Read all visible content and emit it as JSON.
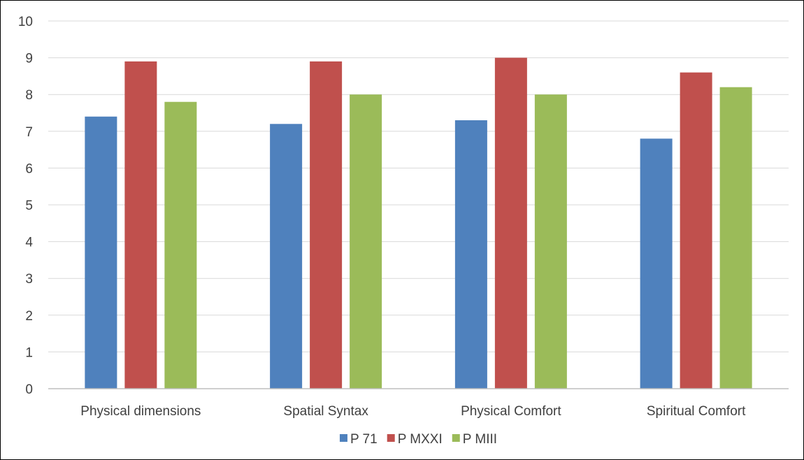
{
  "chart_data": {
    "type": "bar",
    "categories": [
      "Physical dimensions",
      "Spatial Syntax",
      "Physical Comfort",
      "Spiritual Comfort"
    ],
    "series": [
      {
        "name": "P 71",
        "color": "#4f81bd",
        "values": [
          7.4,
          7.2,
          7.3,
          6.8
        ]
      },
      {
        "name": "P MXXI",
        "color": "#c0504d",
        "values": [
          8.9,
          8.9,
          9.0,
          8.6
        ]
      },
      {
        "name": "P MIII",
        "color": "#9bbb59",
        "values": [
          7.8,
          8.0,
          8.0,
          8.2
        ]
      }
    ],
    "title": "",
    "xlabel": "",
    "ylabel": "",
    "ylim": [
      0,
      10
    ],
    "yticks": [
      "0",
      "1",
      "2",
      "3",
      "4",
      "5",
      "6",
      "7",
      "8",
      "9",
      "10"
    ],
    "grid": true,
    "legend_position": "bottom",
    "gridline_color": "#d9d9d9",
    "axis_color": "#bfbfbf"
  }
}
